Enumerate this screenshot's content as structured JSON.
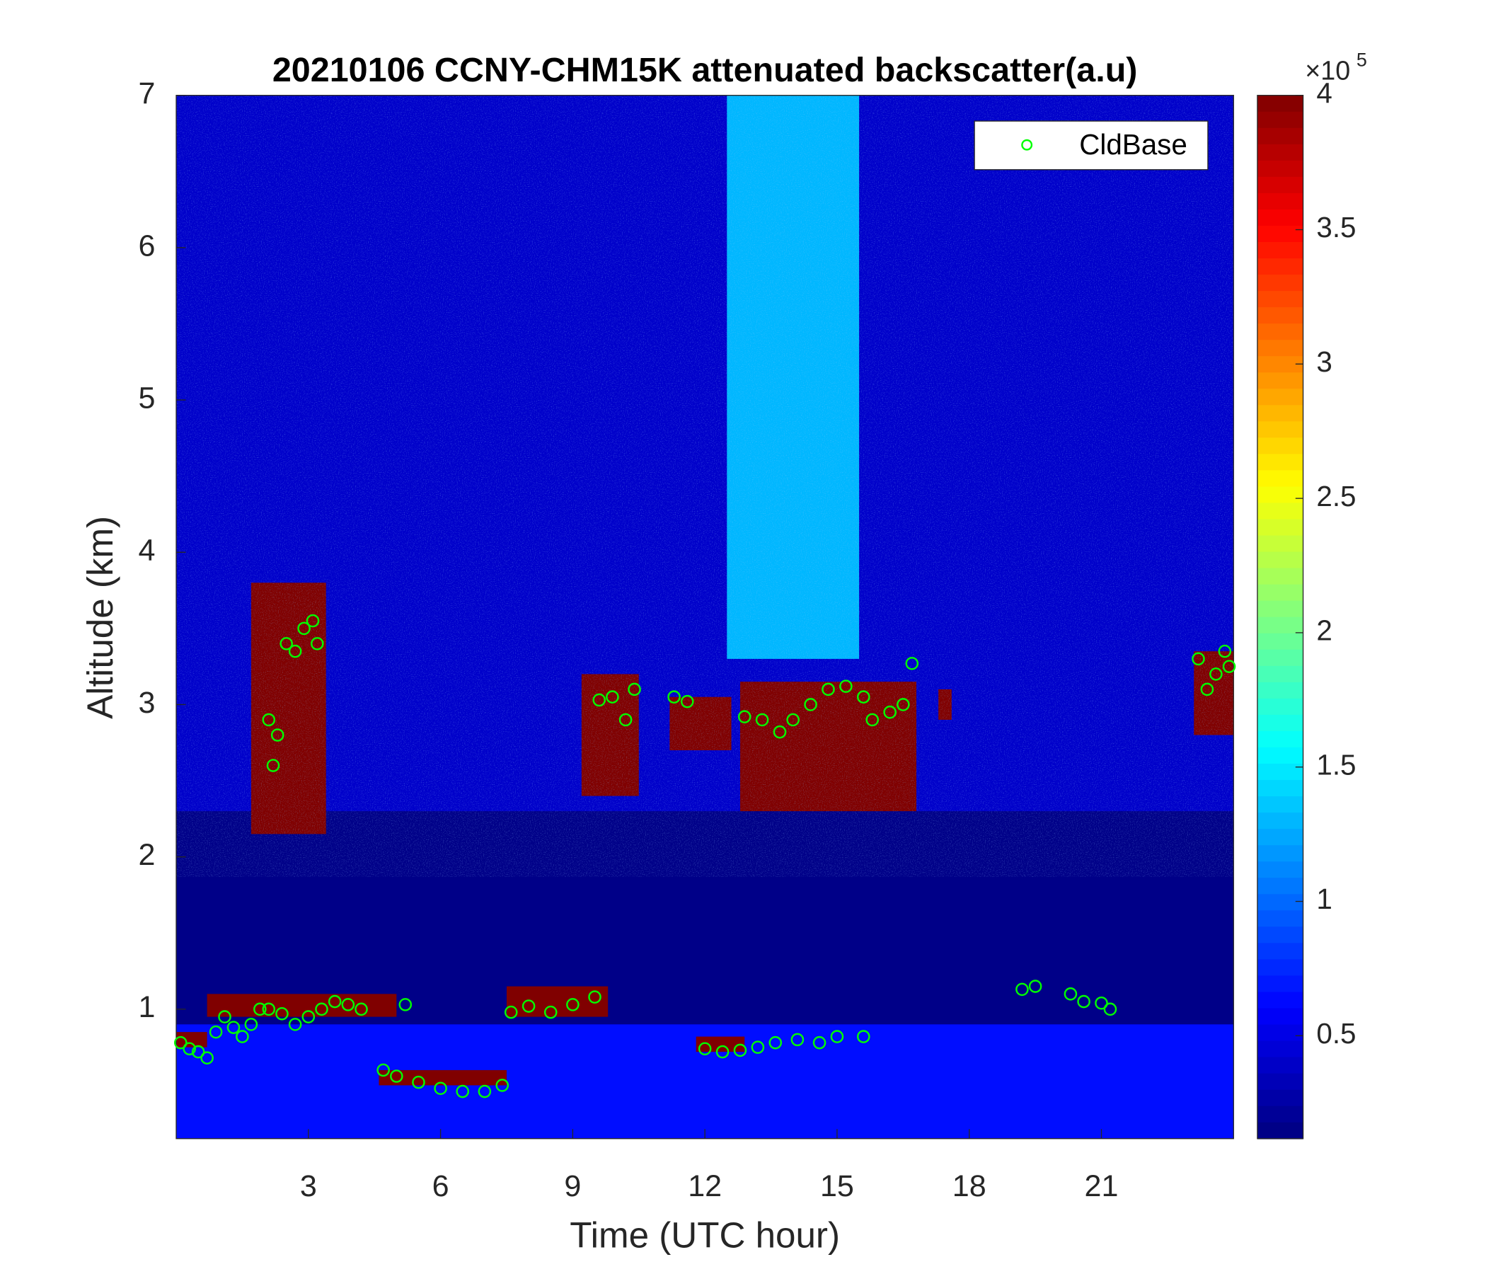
{
  "chart_data": {
    "type": "heatmap",
    "title": "20210106 CCNY-CHM15K attenuated backscatter(a.u)",
    "xlabel": "Time (UTC hour)",
    "ylabel": "Altitude (km)",
    "xlim": [
      0,
      24
    ],
    "xticks": [
      3,
      6,
      9,
      12,
      15,
      18,
      21
    ],
    "ylim": [
      0.15,
      7
    ],
    "yticks": [
      1,
      2,
      3,
      4,
      5,
      6,
      7
    ],
    "colormap": "jet",
    "clim": [
      11700,
      400000
    ],
    "cticks": [
      {
        "value": 50000,
        "label": "0.5"
      },
      {
        "value": 100000,
        "label": "1"
      },
      {
        "value": 150000,
        "label": "1.5"
      },
      {
        "value": 200000,
        "label": "2"
      },
      {
        "value": 250000,
        "label": "2.5"
      },
      {
        "value": 300000,
        "label": "3"
      },
      {
        "value": 350000,
        "label": "3.5"
      },
      {
        "value": 400000,
        "label": "4"
      }
    ],
    "colorbar_exponent": {
      "base": "×10",
      "power": "5"
    },
    "regions": [
      {
        "x": [
          0,
          24
        ],
        "y": [
          0.15,
          7
        ],
        "value": 40000
      },
      {
        "x": [
          0,
          24
        ],
        "y": [
          0.9,
          2.3
        ],
        "value": 15000
      },
      {
        "x": [
          0,
          24
        ],
        "y": [
          0.15,
          0.9
        ],
        "value": 65000
      },
      {
        "x": [
          12.5,
          15.5
        ],
        "y": [
          3.3,
          7
        ],
        "value": 130000
      },
      {
        "x": [
          1.7,
          3.4
        ],
        "y": [
          2.15,
          3.8
        ],
        "value": 400000
      },
      {
        "x": [
          9.2,
          10.5
        ],
        "y": [
          2.4,
          3.2
        ],
        "value": 400000
      },
      {
        "x": [
          11.2,
          12.6
        ],
        "y": [
          2.7,
          3.05
        ],
        "value": 400000
      },
      {
        "x": [
          12.8,
          16.8
        ],
        "y": [
          2.3,
          3.15
        ],
        "value": 400000
      },
      {
        "x": [
          17.3,
          17.6
        ],
        "y": [
          2.9,
          3.1
        ],
        "value": 400000
      },
      {
        "x": [
          23.1,
          24
        ],
        "y": [
          2.8,
          3.35
        ],
        "value": 400000
      },
      {
        "x": [
          0,
          0.7
        ],
        "y": [
          0.75,
          0.85
        ],
        "value": 400000
      },
      {
        "x": [
          0.7,
          5.0
        ],
        "y": [
          0.95,
          1.1
        ],
        "value": 400000
      },
      {
        "x": [
          4.6,
          7.5
        ],
        "y": [
          0.5,
          0.6
        ],
        "value": 400000
      },
      {
        "x": [
          7.5,
          9.8
        ],
        "y": [
          0.95,
          1.15
        ],
        "value": 400000
      },
      {
        "x": [
          11.8,
          12.9
        ],
        "y": [
          0.72,
          0.82
        ],
        "value": 400000
      }
    ],
    "legend": "upper right",
    "series": [
      {
        "name": "CldBase",
        "color": "#00ff00",
        "x": [
          0.1,
          0.3,
          0.5,
          0.7,
          0.9,
          1.1,
          1.3,
          1.5,
          1.7,
          1.9,
          2.1,
          2.2,
          2.3,
          2.5,
          2.7,
          2.9,
          3.1,
          3.2,
          2.1,
          2.4,
          2.7,
          3.0,
          3.3,
          3.6,
          3.9,
          4.2,
          5.2,
          4.7,
          5.0,
          5.5,
          6.0,
          6.5,
          7.0,
          7.4,
          7.6,
          8.0,
          8.5,
          9.0,
          9.5,
          9.6,
          9.9,
          10.2,
          10.4,
          11.3,
          11.6,
          12.0,
          12.4,
          12.8,
          13.2,
          13.6,
          14.1,
          14.6,
          15.0,
          15.6,
          12.9,
          13.3,
          13.7,
          14.0,
          14.4,
          14.8,
          15.2,
          15.6,
          15.8,
          16.2,
          16.5,
          16.7,
          19.2,
          19.5,
          20.3,
          20.6,
          21.0,
          21.2,
          23.2,
          23.4,
          23.6,
          23.8,
          23.9
        ],
        "y": [
          0.78,
          0.74,
          0.72,
          0.68,
          0.85,
          0.95,
          0.88,
          0.82,
          0.9,
          1.0,
          2.9,
          2.6,
          2.8,
          3.4,
          3.35,
          3.5,
          3.55,
          3.4,
          1.0,
          0.97,
          0.9,
          0.95,
          1.0,
          1.05,
          1.03,
          1.0,
          1.03,
          0.6,
          0.56,
          0.52,
          0.48,
          0.46,
          0.46,
          0.5,
          0.98,
          1.02,
          0.98,
          1.03,
          1.08,
          3.03,
          3.05,
          2.9,
          3.1,
          3.05,
          3.02,
          0.74,
          0.72,
          0.73,
          0.75,
          0.78,
          0.8,
          0.78,
          0.82,
          0.82,
          2.92,
          2.9,
          2.82,
          2.9,
          3.0,
          3.1,
          3.12,
          3.05,
          2.9,
          2.95,
          3.0,
          3.27,
          1.13,
          1.15,
          1.1,
          1.05,
          1.04,
          1.0,
          3.3,
          3.1,
          3.2,
          3.35,
          3.25
        ]
      }
    ]
  }
}
